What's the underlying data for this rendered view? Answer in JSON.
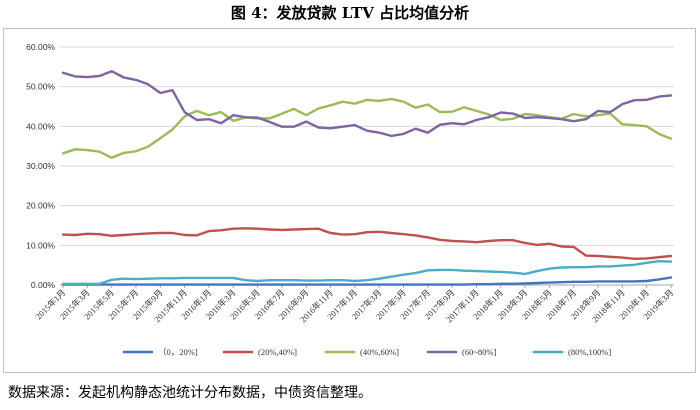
{
  "title": "图 4：发放贷款 LTV 占比均值分析",
  "source": "数据来源：发起机构静态池统计分布数据，中债资信整理。",
  "chart_data": {
    "type": "line",
    "title": "图 4：发放贷款 LTV 占比均值分析",
    "xlabel": "",
    "ylabel": "",
    "ylim": [
      0,
      60
    ],
    "yticks": [
      "0.00%",
      "10.00%",
      "20.00%",
      "30.00%",
      "40.00%",
      "50.00%",
      "60.00%"
    ],
    "ytick_values": [
      0,
      10,
      20,
      30,
      40,
      50,
      60
    ],
    "x": [
      "2015年1月",
      "2015年2月",
      "2015年3月",
      "2015年4月",
      "2015年5月",
      "2015年6月",
      "2015年7月",
      "2015年8月",
      "2015年9月",
      "2015年10月",
      "2015年11月",
      "2015年12月",
      "2016年1月",
      "2016年2月",
      "2016年3月",
      "2016年4月",
      "2016年5月",
      "2016年6月",
      "2016年7月",
      "2016年8月",
      "2016年9月",
      "2016年10月",
      "2016年11月",
      "2016年12月",
      "2017年1月",
      "2017年2月",
      "2017年3月",
      "2017年4月",
      "2017年5月",
      "2017年6月",
      "2017年7月",
      "2017年8月",
      "2017年9月",
      "2017年10月",
      "2017年11月",
      "2017年12月",
      "2018年1月",
      "2018年2月",
      "2018年3月",
      "2018年4月",
      "2018年5月",
      "2018年6月",
      "2018年7月",
      "2018年8月",
      "2018年9月",
      "2018年10月",
      "2018年11月",
      "2018年12月",
      "2019年1月",
      "2019年2月",
      "2019年3月"
    ],
    "xticks": [
      "2015年1月",
      "2015年3月",
      "2015年5月",
      "2015年7月",
      "2015年9月",
      "2015年11月",
      "2016年1月",
      "2016年3月",
      "2016年5月",
      "2016年7月",
      "2016年9月",
      "2016年11月",
      "2017年1月",
      "2017年3月",
      "2017年5月",
      "2017年7月",
      "2017年9月",
      "2017年11月",
      "2018年1月",
      "2018年3月",
      "2018年5月",
      "2018年7月",
      "2018年9月",
      "2018年11月",
      "2019年1月",
      "2019年3月"
    ],
    "legend_position": "bottom",
    "series": [
      {
        "name": "（0，20%]",
        "color": "#4472c4",
        "values": [
          0.1,
          0.1,
          0.1,
          0.1,
          0.1,
          0.1,
          0.1,
          0.1,
          0.1,
          0.1,
          0.1,
          0.1,
          0.1,
          0.1,
          0.1,
          0.1,
          0.1,
          0.1,
          0.1,
          0.1,
          0.1,
          0.1,
          0.1,
          0.1,
          0.1,
          0.1,
          0.1,
          0.1,
          0.1,
          0.1,
          0.1,
          0.1,
          0.1,
          0.1,
          0.2,
          0.2,
          0.3,
          0.3,
          0.4,
          0.5,
          0.6,
          0.7,
          0.8,
          0.8,
          0.9,
          0.9,
          0.9,
          0.9,
          1.0,
          1.4,
          1.9
        ]
      },
      {
        "name": "(20%,40%]",
        "color": "#c0504d",
        "values": [
          12.7,
          12.6,
          12.9,
          12.8,
          12.4,
          12.6,
          12.8,
          13.0,
          13.1,
          13.1,
          12.6,
          12.5,
          13.6,
          13.8,
          14.2,
          14.3,
          14.2,
          14.0,
          13.9,
          14.0,
          14.1,
          14.2,
          13.1,
          12.7,
          12.8,
          13.3,
          13.4,
          13.1,
          12.8,
          12.5,
          12.0,
          11.4,
          11.1,
          11.0,
          10.8,
          11.1,
          11.3,
          11.3,
          10.6,
          10.1,
          10.4,
          9.7,
          9.6,
          7.4,
          7.3,
          7.1,
          6.9,
          6.6,
          6.7,
          7.0,
          7.3
        ]
      },
      {
        "name": "(40%,60%]",
        "color": "#9bbb59",
        "values": [
          33.2,
          34.2,
          34.0,
          33.6,
          32.1,
          33.3,
          33.7,
          34.9,
          37.0,
          39.2,
          42.5,
          43.9,
          42.8,
          43.6,
          41.4,
          42.2,
          42.0,
          42.0,
          43.2,
          44.4,
          42.8,
          44.5,
          45.3,
          46.2,
          45.7,
          46.7,
          46.4,
          46.9,
          46.2,
          44.7,
          45.5,
          43.6,
          43.7,
          44.8,
          43.9,
          43.0,
          41.6,
          41.9,
          43.1,
          42.8,
          42.3,
          41.9,
          43.1,
          42.5,
          42.8,
          43.2,
          40.5,
          40.3,
          40.0,
          38.1,
          36.9
        ]
      },
      {
        "name": "(60~80%]",
        "color": "#8064a2",
        "values": [
          53.5,
          52.6,
          52.4,
          52.7,
          53.9,
          52.3,
          51.7,
          50.6,
          48.4,
          49.1,
          43.6,
          41.6,
          41.8,
          40.8,
          42.8,
          42.3,
          42.2,
          41.1,
          39.9,
          39.9,
          41.2,
          39.7,
          39.5,
          39.9,
          40.3,
          38.9,
          38.4,
          37.6,
          38.1,
          39.4,
          38.4,
          40.4,
          40.8,
          40.5,
          41.6,
          42.3,
          43.5,
          43.2,
          42.1,
          42.3,
          42.1,
          41.8,
          41.3,
          41.8,
          43.9,
          43.6,
          45.6,
          46.6,
          46.7,
          47.5,
          47.8
        ]
      },
      {
        "name": "(80%,100%]",
        "color": "#4bacc6",
        "values": [
          0.3,
          0.3,
          0.3,
          0.3,
          1.3,
          1.6,
          1.5,
          1.6,
          1.7,
          1.7,
          1.8,
          1.8,
          1.8,
          1.8,
          1.8,
          1.2,
          1.0,
          1.2,
          1.2,
          1.2,
          1.1,
          1.1,
          1.2,
          1.2,
          1.0,
          1.2,
          1.6,
          2.1,
          2.6,
          3.0,
          3.7,
          3.8,
          3.8,
          3.6,
          3.5,
          3.4,
          3.3,
          3.1,
          2.8,
          3.5,
          4.1,
          4.4,
          4.5,
          4.5,
          4.7,
          4.7,
          4.9,
          5.1,
          5.6,
          6.0,
          5.9
        ]
      }
    ]
  }
}
